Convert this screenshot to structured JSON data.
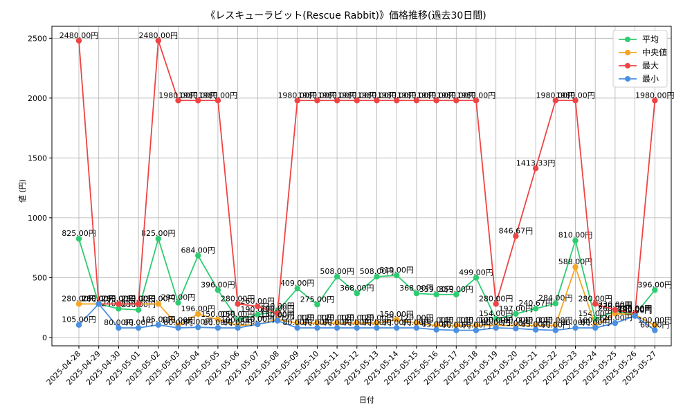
{
  "chart_data": {
    "type": "line",
    "title": "《レスキューラビット(Rescue Rabbit)》価格推移(過去30日間)",
    "xlabel": "日付",
    "ylabel": "値 (円)",
    "ylim": [
      -70,
      2600
    ],
    "yticks": [
      0,
      500,
      1000,
      1500,
      2000,
      2500
    ],
    "grid": true,
    "legend_position": "top-right",
    "value_suffix": "円",
    "x": [
      "2025-04-28",
      "2025-04-29",
      "2025-04-30",
      "2025-05-01",
      "2025-05-02",
      "2025-05-03",
      "2025-05-04",
      "2025-05-05",
      "2025-05-06",
      "2025-05-07",
      "2025-05-08",
      "2025-05-09",
      "2025-05-10",
      "2025-05-11",
      "2025-05-12",
      "2025-05-13",
      "2025-05-14",
      "2025-05-15",
      "2025-05-16",
      "2025-05-17",
      "2025-05-18",
      "2025-05-19",
      "2025-05-20",
      "2025-05-21",
      "2025-05-22",
      "2025-05-23",
      "2025-05-24",
      "2025-05-25",
      "2025-05-26",
      "2025-05-27"
    ],
    "series": [
      {
        "name": "平均",
        "color": "#2ecc71",
        "values": [
          825,
          280,
          240,
          230,
          825,
          290,
          684,
          396,
          150,
          190,
          220,
          409,
          275,
          508,
          368,
          508,
          519,
          368,
          359,
          359,
          499,
          154,
          197,
          240.67,
          284,
          810,
          154,
          220,
          190,
          396
        ]
      },
      {
        "name": "中央値",
        "color": "#f5a623",
        "values": [
          280,
          280,
          280,
          280,
          280,
          100,
          196,
          150,
          100,
          110,
          150,
          120,
          120,
          120,
          120,
          120,
          150,
          120,
          100,
          100,
          100,
          100,
          100,
          100,
          100,
          588,
          100,
          200,
          190,
          100
        ]
      },
      {
        "name": "最大",
        "color": "#ef4444",
        "values": [
          2480,
          280,
          280,
          280,
          2480,
          1980,
          1980,
          1980,
          280,
          260,
          200,
          1980,
          1980,
          1980,
          1980,
          1980,
          1980,
          1980,
          1980,
          1980,
          1980,
          280,
          846.67,
          1413.33,
          1980,
          1980,
          280,
          230,
          200,
          1980
        ]
      },
      {
        "name": "最小",
        "color": "#4a90e2",
        "values": [
          105,
          280,
          80,
          80,
          105,
          80,
          85,
          80,
          80,
          110,
          140,
          80,
          80,
          80,
          80,
          80,
          80,
          80,
          65,
          60,
          60,
          80,
          75,
          65,
          60,
          80,
          80,
          120,
          180,
          60
        ]
      }
    ]
  }
}
